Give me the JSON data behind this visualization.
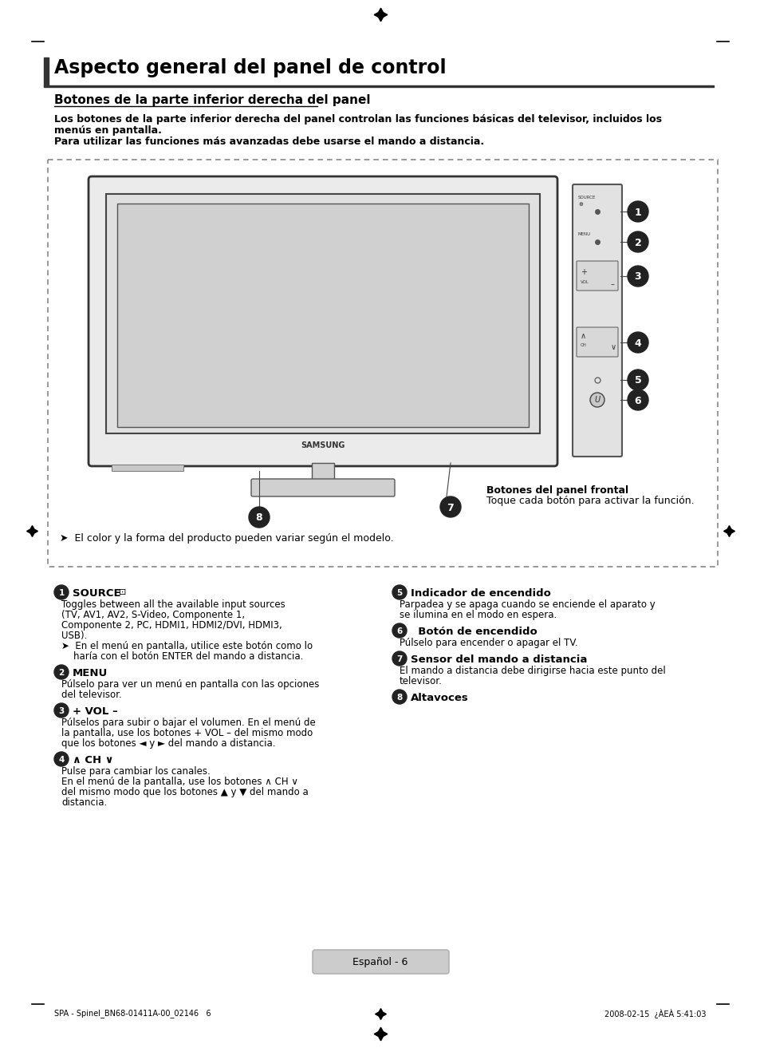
{
  "page_title": "Aspecto general del panel de control",
  "section_title": "Botones de la parte inferior derecha del panel",
  "intro_line1": "Los botones de la parte inferior derecha del panel controlan las funciones básicas del televisor, incluidos los",
  "intro_line2": "menús en pantalla.",
  "intro_line3": "Para utilizar las funciones más avanzadas debe usarse el mando a distancia.",
  "callout_label_line1": "Botones del panel frontal",
  "callout_label_line2": "Toque cada botón para activar la función.",
  "note_text": "➤  El color y la forma del producto pueden variar según el modelo.",
  "item1_title": "SOURCE",
  "item1_body1": "Toggles between all the available input sources",
  "item1_body2": "(TV, AV1, AV2, S-Video, Componente 1,",
  "item1_body3": "Componente 2, PC, HDMI1, HDMI2/DVI, HDMI3,",
  "item1_body4": "USB).",
  "item1_body5": "➤  En el menú en pantalla, utilice este botón como lo",
  "item1_body6": "    haría con el botón ENTER del mando a distancia.",
  "item2_title": "MENU",
  "item2_body1": "Púlselo para ver un menú en pantalla con las opciones",
  "item2_body2": "del televisor.",
  "item3_title": "+ VOL –",
  "item3_body1": "Púlselos para subir o bajar el volumen. En el menú de",
  "item3_body2": "la pantalla, use los botones + VOL – del mismo modo",
  "item3_body3": "que los botones ◄ y ► del mando a distancia.",
  "item4_title": "∧ CH ∨",
  "item4_body1": "Pulse para cambiar los canales.",
  "item4_body2": "En el menú de la pantalla, use los botones ∧ CH ∨",
  "item4_body3": "del mismo modo que los botones ▲ y ▼ del mando a",
  "item4_body4": "distancia.",
  "item5_title": "Indicador de encendido",
  "item5_body1": "Parpadea y se apaga cuando se enciende el aparato y",
  "item5_body2": "se ilumina en el modo en espera.",
  "item6_title": "  Botón de encendido",
  "item6_body1": "Púlselo para encender o apagar el TV.",
  "item7_title": "Sensor del mando a distancia",
  "item7_body1": "El mando a distancia debe dirigirse hacia este punto del",
  "item7_body2": "televisor.",
  "item8_title": "Altavoces",
  "footer_text": "Español - 6",
  "footer_left": "SPA - Spinel_BN68-01411A-00_02146   6",
  "footer_right": "2008-02-15  ¿ÀEÀ 5:41:03",
  "bg_color": "#ffffff",
  "text_color": "#000000",
  "title_bar_color": "#333333",
  "dashed_box_color": "#888888",
  "callout_circle_color": "#222222",
  "page_number_bg": "#cccccc"
}
